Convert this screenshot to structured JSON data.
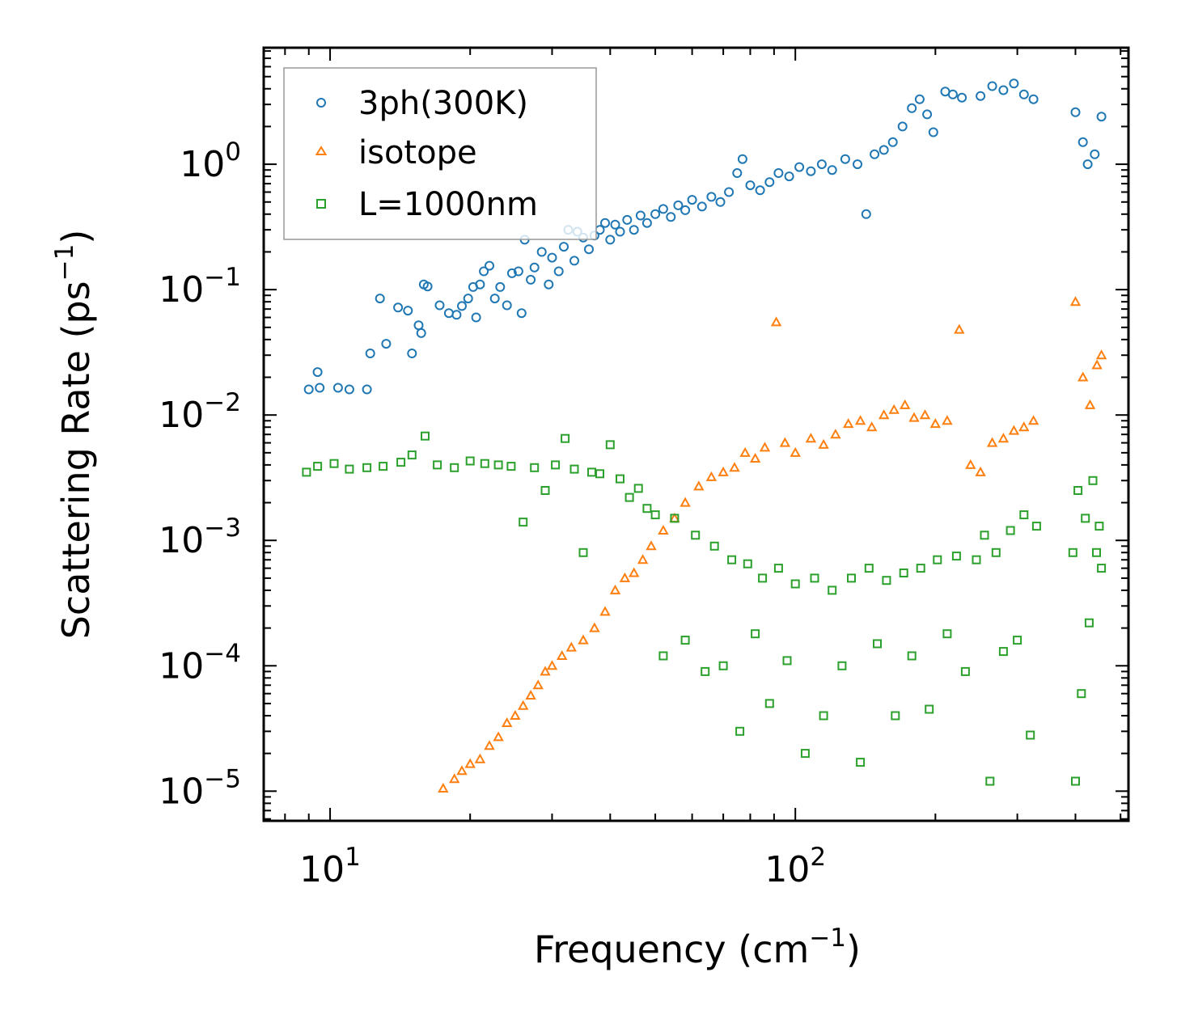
{
  "chart_data": {
    "type": "scatter",
    "title": "",
    "xlabel": "Frequency (cm",
    "xlabel_exp": "−1",
    "xlabel_close": ")",
    "ylabel": "Scattering Rate (ps",
    "ylabel_exp": "−1",
    "ylabel_close": ")",
    "xscale": "log",
    "yscale": "log",
    "xlim": [
      7.2,
      520
    ],
    "ylim": [
      5.8e-06,
      8.5
    ],
    "x_ticks": [
      {
        "value": 10,
        "base": "10",
        "exp": "1"
      },
      {
        "value": 100,
        "base": "10",
        "exp": "2"
      }
    ],
    "y_ticks": [
      {
        "value": 1e-05,
        "base": "10",
        "exp": "−5"
      },
      {
        "value": 0.0001,
        "base": "10",
        "exp": "−4"
      },
      {
        "value": 0.001,
        "base": "10",
        "exp": "−3"
      },
      {
        "value": 0.01,
        "base": "10",
        "exp": "−2"
      },
      {
        "value": 0.1,
        "base": "10",
        "exp": "−1"
      },
      {
        "value": 1,
        "base": "10",
        "exp": "0"
      }
    ],
    "legend_position": "top-left",
    "grid": false,
    "series": [
      {
        "name": "3ph(300K)",
        "marker": "circle",
        "color": "#1f77b4",
        "points": [
          [
            9.0,
            0.016
          ],
          [
            9.4,
            0.022
          ],
          [
            9.5,
            0.0165
          ],
          [
            10.4,
            0.0165
          ],
          [
            11.0,
            0.016
          ],
          [
            12.0,
            0.016
          ],
          [
            12.2,
            0.031
          ],
          [
            12.8,
            0.085
          ],
          [
            13.2,
            0.037
          ],
          [
            14.0,
            0.072
          ],
          [
            14.7,
            0.068
          ],
          [
            15.0,
            0.031
          ],
          [
            15.5,
            0.052
          ],
          [
            15.7,
            0.045
          ],
          [
            15.9,
            0.11
          ],
          [
            16.2,
            0.106
          ],
          [
            17.2,
            0.075
          ],
          [
            18.0,
            0.065
          ],
          [
            18.7,
            0.063
          ],
          [
            19.2,
            0.074
          ],
          [
            19.8,
            0.085
          ],
          [
            20.3,
            0.105
          ],
          [
            20.6,
            0.06
          ],
          [
            21.0,
            0.11
          ],
          [
            21.4,
            0.14
          ],
          [
            22.0,
            0.155
          ],
          [
            22.6,
            0.085
          ],
          [
            23.2,
            0.105
          ],
          [
            24.0,
            0.075
          ],
          [
            24.6,
            0.135
          ],
          [
            25.4,
            0.14
          ],
          [
            25.8,
            0.065
          ],
          [
            26.2,
            0.25
          ],
          [
            27.0,
            0.12
          ],
          [
            27.5,
            0.15
          ],
          [
            28.5,
            0.2
          ],
          [
            29.5,
            0.11
          ],
          [
            30.0,
            0.18
          ],
          [
            31.0,
            0.14
          ],
          [
            31.8,
            0.22
          ],
          [
            32.5,
            0.3
          ],
          [
            33.5,
            0.17
          ],
          [
            34.0,
            0.29
          ],
          [
            35.0,
            0.26
          ],
          [
            36.0,
            0.21
          ],
          [
            37.0,
            0.27
          ],
          [
            38.0,
            0.3
          ],
          [
            39.0,
            0.34
          ],
          [
            40.0,
            0.25
          ],
          [
            41.0,
            0.33
          ],
          [
            42.0,
            0.29
          ],
          [
            43.5,
            0.36
          ],
          [
            45.0,
            0.3
          ],
          [
            46.5,
            0.39
          ],
          [
            48.0,
            0.34
          ],
          [
            50.0,
            0.4
          ],
          [
            52.0,
            0.44
          ],
          [
            54.0,
            0.38
          ],
          [
            56.0,
            0.47
          ],
          [
            58.0,
            0.43
          ],
          [
            60.0,
            0.52
          ],
          [
            63.0,
            0.46
          ],
          [
            66.0,
            0.55
          ],
          [
            69.0,
            0.5
          ],
          [
            72.0,
            0.6
          ],
          [
            75.0,
            0.85
          ],
          [
            77.0,
            1.1
          ],
          [
            80.0,
            0.68
          ],
          [
            84.0,
            0.62
          ],
          [
            88.0,
            0.72
          ],
          [
            92.0,
            0.85
          ],
          [
            97.0,
            0.8
          ],
          [
            102.0,
            0.95
          ],
          [
            108.0,
            0.88
          ],
          [
            114.0,
            1.0
          ],
          [
            120.0,
            0.9
          ],
          [
            128.0,
            1.1
          ],
          [
            136.0,
            1.0
          ],
          [
            142.0,
            0.4
          ],
          [
            148.0,
            1.2
          ],
          [
            155.0,
            1.3
          ],
          [
            162.0,
            1.5
          ],
          [
            170.0,
            2.0
          ],
          [
            178.0,
            2.8
          ],
          [
            185.0,
            3.3
          ],
          [
            192.0,
            2.5
          ],
          [
            198.0,
            1.8
          ],
          [
            210.0,
            3.8
          ],
          [
            218.0,
            3.6
          ],
          [
            228.0,
            3.4
          ],
          [
            250.0,
            3.5
          ],
          [
            265.0,
            4.2
          ],
          [
            280.0,
            3.9
          ],
          [
            295.0,
            4.4
          ],
          [
            310.0,
            3.6
          ],
          [
            325.0,
            3.3
          ],
          [
            400.0,
            2.6
          ],
          [
            415.0,
            1.5
          ],
          [
            425.0,
            1.0
          ],
          [
            440.0,
            1.2
          ],
          [
            455.0,
            2.4
          ]
        ]
      },
      {
        "name": "isotope",
        "marker": "triangle",
        "color": "#ff7f0e",
        "points": [
          [
            17.5,
            1.05e-05
          ],
          [
            18.5,
            1.25e-05
          ],
          [
            19.2,
            1.45e-05
          ],
          [
            20.0,
            1.65e-05
          ],
          [
            21.0,
            1.8e-05
          ],
          [
            22.0,
            2.3e-05
          ],
          [
            23.0,
            2.7e-05
          ],
          [
            24.0,
            3.5e-05
          ],
          [
            25.0,
            4e-05
          ],
          [
            26.0,
            4.8e-05
          ],
          [
            27.0,
            5.8e-05
          ],
          [
            28.0,
            7e-05
          ],
          [
            29.0,
            9e-05
          ],
          [
            30.0,
            0.0001
          ],
          [
            31.5,
            0.00012
          ],
          [
            33.0,
            0.00014
          ],
          [
            35.0,
            0.00016
          ],
          [
            37.0,
            0.0002
          ],
          [
            39.0,
            0.00027
          ],
          [
            41.0,
            0.0004
          ],
          [
            43.0,
            0.0005
          ],
          [
            45.0,
            0.00055
          ],
          [
            47.0,
            0.0007
          ],
          [
            49.0,
            0.0009
          ],
          [
            52.0,
            0.0012
          ],
          [
            55.0,
            0.0015
          ],
          [
            58.0,
            0.002
          ],
          [
            62.0,
            0.0027
          ],
          [
            66.0,
            0.0032
          ],
          [
            70.0,
            0.0035
          ],
          [
            74.0,
            0.0038
          ],
          [
            78.0,
            0.005
          ],
          [
            82.0,
            0.0045
          ],
          [
            86.0,
            0.0055
          ],
          [
            91.0,
            0.055
          ],
          [
            95.0,
            0.006
          ],
          [
            100.0,
            0.005
          ],
          [
            108.0,
            0.0065
          ],
          [
            115.0,
            0.0058
          ],
          [
            122.0,
            0.007
          ],
          [
            130.0,
            0.0085
          ],
          [
            138.0,
            0.009
          ],
          [
            146.0,
            0.008
          ],
          [
            155.0,
            0.01
          ],
          [
            163.0,
            0.011
          ],
          [
            172.0,
            0.012
          ],
          [
            180.0,
            0.0095
          ],
          [
            190.0,
            0.01
          ],
          [
            200.0,
            0.0085
          ],
          [
            212.0,
            0.009
          ],
          [
            225.0,
            0.048
          ],
          [
            238.0,
            0.004
          ],
          [
            250.0,
            0.0035
          ],
          [
            265.0,
            0.006
          ],
          [
            280.0,
            0.0065
          ],
          [
            295.0,
            0.0075
          ],
          [
            310.0,
            0.008
          ],
          [
            325.0,
            0.009
          ],
          [
            400.0,
            0.08
          ],
          [
            415.0,
            0.02
          ],
          [
            430.0,
            0.012
          ],
          [
            445.0,
            0.025
          ],
          [
            455.0,
            0.03
          ]
        ]
      },
      {
        "name": "L=1000nm",
        "marker": "square",
        "color": "#2ca02c",
        "points": [
          [
            8.9,
            0.0035
          ],
          [
            9.4,
            0.0039
          ],
          [
            10.2,
            0.0041
          ],
          [
            11.0,
            0.0037
          ],
          [
            12.0,
            0.0038
          ],
          [
            13.0,
            0.0039
          ],
          [
            14.2,
            0.0042
          ],
          [
            15.0,
            0.0048
          ],
          [
            16.0,
            0.0068
          ],
          [
            17.0,
            0.004
          ],
          [
            18.5,
            0.0038
          ],
          [
            20.0,
            0.0043
          ],
          [
            21.5,
            0.0041
          ],
          [
            23.0,
            0.004
          ],
          [
            24.5,
            0.0039
          ],
          [
            26.0,
            0.0014
          ],
          [
            27.5,
            0.0038
          ],
          [
            29.0,
            0.0025
          ],
          [
            30.5,
            0.004
          ],
          [
            32.0,
            0.0065
          ],
          [
            33.5,
            0.0037
          ],
          [
            35.0,
            0.0008
          ],
          [
            36.5,
            0.0035
          ],
          [
            38.0,
            0.0034
          ],
          [
            40.0,
            0.0058
          ],
          [
            42.0,
            0.0031
          ],
          [
            44.0,
            0.0022
          ],
          [
            46.0,
            0.0026
          ],
          [
            48.0,
            0.0018
          ],
          [
            50.0,
            0.0016
          ],
          [
            52.0,
            0.00012
          ],
          [
            55.0,
            0.0015
          ],
          [
            58.0,
            0.00016
          ],
          [
            61.0,
            0.0011
          ],
          [
            64.0,
            9e-05
          ],
          [
            67.0,
            0.0009
          ],
          [
            70.0,
            0.0001
          ],
          [
            73.0,
            0.0007
          ],
          [
            76.0,
            3e-05
          ],
          [
            79.0,
            0.00065
          ],
          [
            82.0,
            0.00018
          ],
          [
            85.0,
            0.0005
          ],
          [
            88.0,
            5e-05
          ],
          [
            92.0,
            0.0006
          ],
          [
            96.0,
            0.00011
          ],
          [
            100.0,
            0.00045
          ],
          [
            105.0,
            2e-05
          ],
          [
            110.0,
            0.0005
          ],
          [
            115.0,
            4e-05
          ],
          [
            120.0,
            0.0004
          ],
          [
            126.0,
            0.0001
          ],
          [
            132.0,
            0.0005
          ],
          [
            138.0,
            1.7e-05
          ],
          [
            144.0,
            0.0006
          ],
          [
            150.0,
            0.00015
          ],
          [
            157.0,
            0.00048
          ],
          [
            164.0,
            4e-05
          ],
          [
            171.0,
            0.00055
          ],
          [
            178.0,
            0.00012
          ],
          [
            186.0,
            0.0006
          ],
          [
            194.0,
            4.5e-05
          ],
          [
            202.0,
            0.0007
          ],
          [
            212.0,
            0.00018
          ],
          [
            222.0,
            0.00075
          ],
          [
            232.0,
            9e-05
          ],
          [
            245.0,
            0.0007
          ],
          [
            255.0,
            0.0011
          ],
          [
            262.0,
            1.2e-05
          ],
          [
            270.0,
            0.0008
          ],
          [
            280.0,
            0.00013
          ],
          [
            290.0,
            0.0012
          ],
          [
            300.0,
            0.00016
          ],
          [
            310.0,
            0.0016
          ],
          [
            320.0,
            2.8e-05
          ],
          [
            330.0,
            0.0013
          ],
          [
            395.0,
            0.0008
          ],
          [
            400.0,
            1.2e-05
          ],
          [
            405.0,
            0.0025
          ],
          [
            412.0,
            6e-05
          ],
          [
            420.0,
            0.0015
          ],
          [
            428.0,
            0.00022
          ],
          [
            436.0,
            0.003
          ],
          [
            444.0,
            0.0008
          ],
          [
            450.0,
            0.0013
          ],
          [
            455.0,
            0.0006
          ]
        ]
      }
    ]
  }
}
